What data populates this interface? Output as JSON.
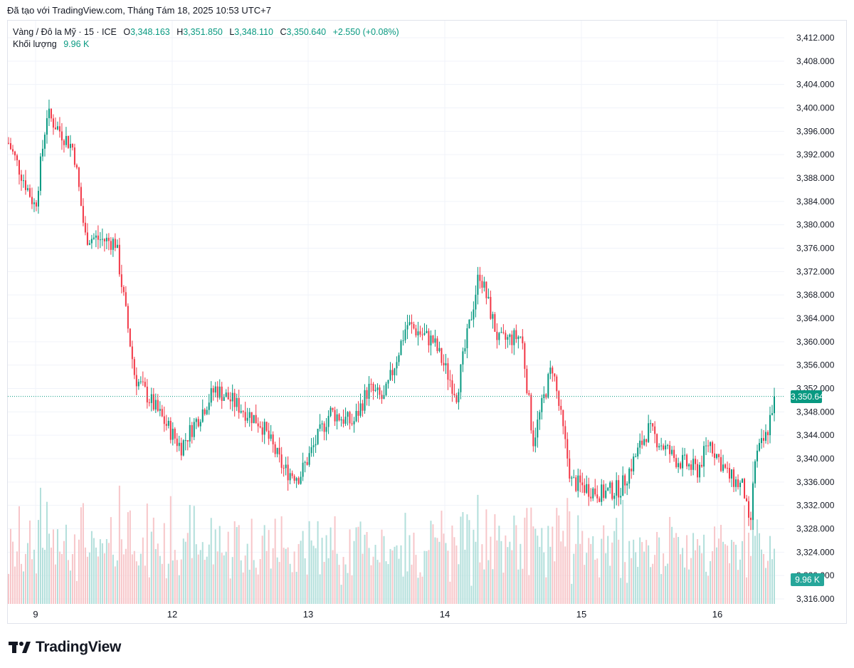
{
  "caption": "Đã tạo với TradingView.com, Tháng Tám 18, 2025 10:53 UTC+7",
  "legend": {
    "symbol": "Vàng / Đô la Mỹ · 15 · ICE",
    "open_label": "O",
    "open": "3,348.163",
    "high_label": "H",
    "high": "3,351.850",
    "low_label": "L",
    "low": "3,348.110",
    "close_label": "C",
    "close": "3,350.640",
    "change": "+2.550 (+0.08%)",
    "volume_label": "Khối lượng",
    "volume": "9.96 K"
  },
  "badges": {
    "last_price": "3,350.640",
    "last_volume": "9.96 K"
  },
  "brand": {
    "name": "TradingView"
  },
  "colors": {
    "up": "#089981",
    "down": "#f23645",
    "grid": "#f0f3fa",
    "text": "#131722",
    "vol_up": "#b2dfdb",
    "vol_down": "#f7c6c9"
  },
  "chart_data": {
    "type": "candlestick",
    "title": "Vàng / Đô la Mỹ · 15 · ICE",
    "interval": "15",
    "x_ticks": [
      "9",
      "12",
      "13",
      "14",
      "15",
      "16"
    ],
    "y_ticks": [
      "3,316.000",
      "3,320.000",
      "3,324.000",
      "3,328.000",
      "3,332.000",
      "3,336.000",
      "3,340.000",
      "3,344.000",
      "3,348.000",
      "3,352.000",
      "3,356.000",
      "3,360.000",
      "3,364.000",
      "3,368.000",
      "3,372.000",
      "3,376.000",
      "3,380.000",
      "3,384.000",
      "3,388.000",
      "3,392.000",
      "3,396.000",
      "3,400.000",
      "3,404.000",
      "3,408.000",
      "3,412.000"
    ],
    "ylim": [
      3316,
      3412
    ],
    "last_close": 3350.64,
    "volume_max_k": 25,
    "path": [
      {
        "t": 0,
        "p": 3394
      },
      {
        "t": 0.035,
        "p": 3383
      },
      {
        "t": 0.05,
        "p": 3399
      },
      {
        "t": 0.085,
        "p": 3393
      },
      {
        "t": 0.1,
        "p": 3378
      },
      {
        "t": 0.14,
        "p": 3377
      },
      {
        "t": 0.165,
        "p": 3354
      },
      {
        "t": 0.2,
        "p": 3347
      },
      {
        "t": 0.225,
        "p": 3342
      },
      {
        "t": 0.27,
        "p": 3352
      },
      {
        "t": 0.33,
        "p": 3346
      },
      {
        "t": 0.36,
        "p": 3338
      },
      {
        "t": 0.38,
        "p": 3337
      },
      {
        "t": 0.42,
        "p": 3348
      },
      {
        "t": 0.45,
        "p": 3346
      },
      {
        "t": 0.47,
        "p": 3352
      },
      {
        "t": 0.49,
        "p": 3350
      },
      {
        "t": 0.52,
        "p": 3363
      },
      {
        "t": 0.555,
        "p": 3360
      },
      {
        "t": 0.585,
        "p": 3351
      },
      {
        "t": 0.615,
        "p": 3372
      },
      {
        "t": 0.64,
        "p": 3360
      },
      {
        "t": 0.67,
        "p": 3361
      },
      {
        "t": 0.685,
        "p": 3343
      },
      {
        "t": 0.71,
        "p": 3356
      },
      {
        "t": 0.735,
        "p": 3336
      },
      {
        "t": 0.775,
        "p": 3334
      },
      {
        "t": 0.8,
        "p": 3335
      },
      {
        "t": 0.835,
        "p": 3345
      },
      {
        "t": 0.87,
        "p": 3340
      },
      {
        "t": 0.9,
        "p": 3338
      },
      {
        "t": 0.915,
        "p": 3343
      },
      {
        "t": 0.94,
        "p": 3337
      },
      {
        "t": 0.96,
        "p": 3335
      },
      {
        "t": 0.968,
        "p": 3327
      },
      {
        "t": 0.975,
        "p": 3340
      },
      {
        "t": 0.99,
        "p": 3344
      },
      {
        "t": 1.0,
        "p": 3350.64
      }
    ]
  }
}
